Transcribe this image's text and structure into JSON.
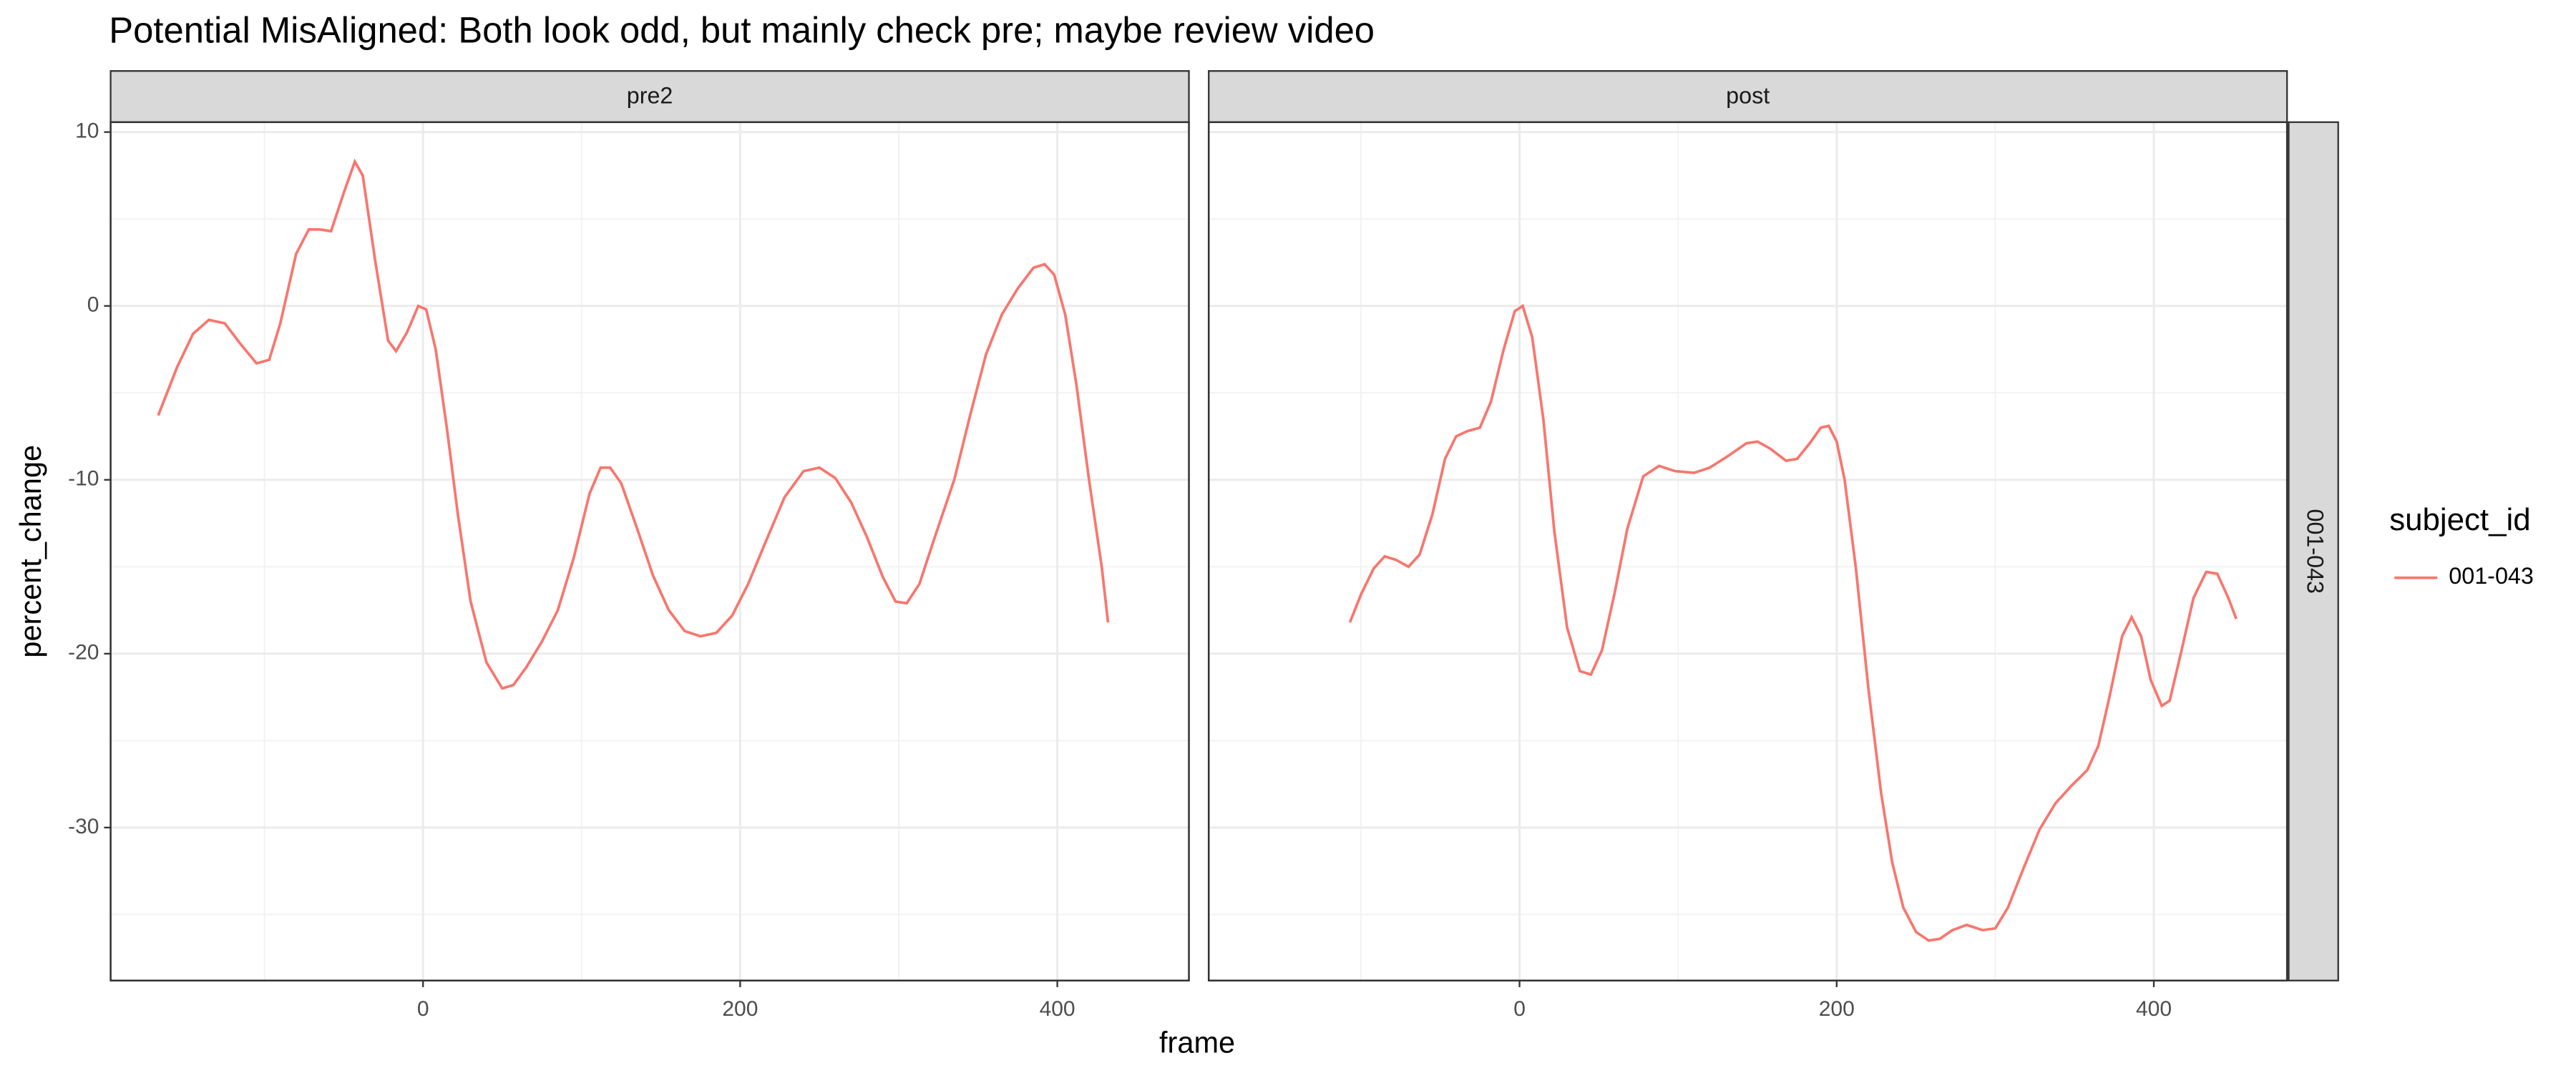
{
  "title": "Potential MisAligned: Both look odd, but mainly check pre; maybe review video",
  "x_label": "frame",
  "y_label": "percent_change",
  "legend_title": "subject_id",
  "row_strip": "001-043",
  "chart_data": [
    {
      "type": "line",
      "panel": "pre2",
      "x": [
        -167,
        -155,
        -145,
        -135,
        -125,
        -115,
        -105,
        -97,
        -90,
        -80,
        -72,
        -65,
        -58,
        -50,
        -43,
        -38,
        -30,
        -22,
        -17,
        -10,
        -3,
        2,
        8,
        15,
        22,
        30,
        40,
        50,
        57,
        65,
        75,
        85,
        95,
        105,
        112,
        118,
        125,
        135,
        145,
        155,
        165,
        175,
        185,
        195,
        205,
        215,
        228,
        240,
        250,
        260,
        270,
        280,
        290,
        298,
        305,
        313,
        322,
        335,
        345,
        355,
        365,
        375,
        385,
        392,
        398,
        405,
        412,
        420,
        428,
        432
      ],
      "series": [
        {
          "name": "001-043",
          "color": "#F8766D",
          "values": [
            -6.3,
            -3.5,
            -1.6,
            -0.8,
            -1.0,
            -2.2,
            -3.3,
            -3.1,
            -1.0,
            3.0,
            4.4,
            4.4,
            4.3,
            6.5,
            8.3,
            7.5,
            2.5,
            -2.0,
            -2.6,
            -1.5,
            0,
            -0.2,
            -2.5,
            -7,
            -12,
            -17,
            -20.5,
            -22,
            -21.8,
            -20.8,
            -19.3,
            -17.5,
            -14.5,
            -10.8,
            -9.3,
            -9.3,
            -10.2,
            -12.8,
            -15.5,
            -17.5,
            -18.7,
            -19,
            -18.8,
            -17.8,
            -16,
            -13.8,
            -11,
            -9.5,
            -9.3,
            -9.9,
            -11.3,
            -13.3,
            -15.6,
            -17,
            -17.1,
            -16,
            -13.5,
            -10,
            -6.3,
            -2.8,
            -0.5,
            1.0,
            2.2,
            2.4,
            1.8,
            -0.5,
            -4.5,
            -10,
            -15,
            -18.2
          ]
        }
      ],
      "xlim": [
        -197,
        483
      ],
      "xticks": [
        0,
        200,
        400
      ],
      "xminor": [
        -100,
        100,
        300
      ],
      "ylim": [
        -38.8,
        10.57
      ],
      "yticks": [
        -30,
        -20,
        -10,
        0,
        10
      ],
      "yminor": [
        -35,
        -25,
        -15,
        -5,
        5
      ],
      "grid": true
    },
    {
      "type": "line",
      "panel": "post",
      "x": [
        -107,
        -100,
        -92,
        -85,
        -78,
        -70,
        -63,
        -55,
        -47,
        -40,
        -33,
        -25,
        -18,
        -10,
        -3,
        2,
        8,
        15,
        22,
        30,
        38,
        45,
        52,
        60,
        68,
        78,
        88,
        98,
        110,
        120,
        132,
        143,
        150,
        158,
        168,
        175,
        183,
        190,
        195,
        200,
        205,
        212,
        220,
        228,
        235,
        242,
        250,
        258,
        265,
        273,
        282,
        292,
        300,
        308,
        318,
        328,
        338,
        348,
        358,
        365,
        372,
        380,
        386,
        392,
        398,
        405,
        410,
        417,
        425,
        433,
        440,
        447,
        452
      ],
      "series": [
        {
          "name": "001-043",
          "color": "#F8766D",
          "values": [
            -18.2,
            -16.6,
            -15.1,
            -14.4,
            -14.6,
            -15,
            -14.3,
            -12,
            -8.8,
            -7.5,
            -7.2,
            -7,
            -5.5,
            -2.5,
            -0.3,
            0,
            -1.8,
            -6.5,
            -13,
            -18.5,
            -21,
            -21.2,
            -19.8,
            -16.5,
            -12.8,
            -9.8,
            -9.2,
            -9.5,
            -9.6,
            -9.3,
            -8.6,
            -7.9,
            -7.8,
            -8.2,
            -8.9,
            -8.8,
            -7.9,
            -7,
            -6.9,
            -7.8,
            -10,
            -15,
            -22,
            -28,
            -32,
            -34.6,
            -36,
            -36.5,
            -36.4,
            -35.9,
            -35.6,
            -35.9,
            -35.8,
            -34.6,
            -32.3,
            -30.1,
            -28.6,
            -27.6,
            -26.7,
            -25.3,
            -22.5,
            -19,
            -17.9,
            -19,
            -21.5,
            -23,
            -22.7,
            -20,
            -16.8,
            -15.3,
            -15.4,
            -16.8,
            -18
          ]
        }
      ],
      "xlim": [
        -196,
        484
      ],
      "xticks": [
        0,
        200,
        400
      ],
      "xminor": [
        -100,
        100,
        300
      ],
      "ylim": [
        -38.8,
        10.57
      ],
      "yticks": [
        -30,
        -20,
        -10,
        0,
        10
      ],
      "yminor": [
        -35,
        -25,
        -15,
        -5,
        5
      ],
      "grid": true
    }
  ]
}
